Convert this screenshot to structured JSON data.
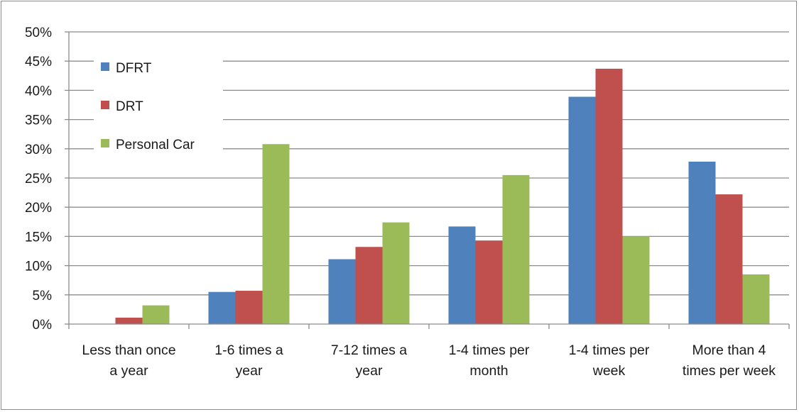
{
  "chart_data": {
    "type": "bar",
    "title": "",
    "xlabel": "",
    "ylabel": "",
    "ylim": [
      0,
      50
    ],
    "y_tick_format": "percent",
    "y_ticks": [
      "0%",
      "5%",
      "10%",
      "15%",
      "20%",
      "25%",
      "30%",
      "35%",
      "40%",
      "45%",
      "50%"
    ],
    "grid": true,
    "legend_position": "top-left",
    "categories": [
      [
        "Less than once",
        "a year"
      ],
      [
        "1-6 times a",
        "year"
      ],
      [
        "7-12 times a",
        "year"
      ],
      [
        "1-4 times per",
        "month"
      ],
      [
        "1-4 times per",
        "week"
      ],
      [
        "More than 4",
        "times per week"
      ]
    ],
    "series": [
      {
        "name": "DFRT",
        "color": "#4f81bd",
        "values": [
          0,
          5.5,
          11.1,
          16.7,
          38.9,
          27.8
        ]
      },
      {
        "name": "DRT",
        "color": "#c0504d",
        "values": [
          1.1,
          5.7,
          13.2,
          14.3,
          43.7,
          22.2
        ]
      },
      {
        "name": "Personal Car",
        "color": "#9bbb59",
        "values": [
          3.2,
          30.8,
          17.4,
          25.5,
          15.0,
          8.5
        ]
      }
    ]
  }
}
